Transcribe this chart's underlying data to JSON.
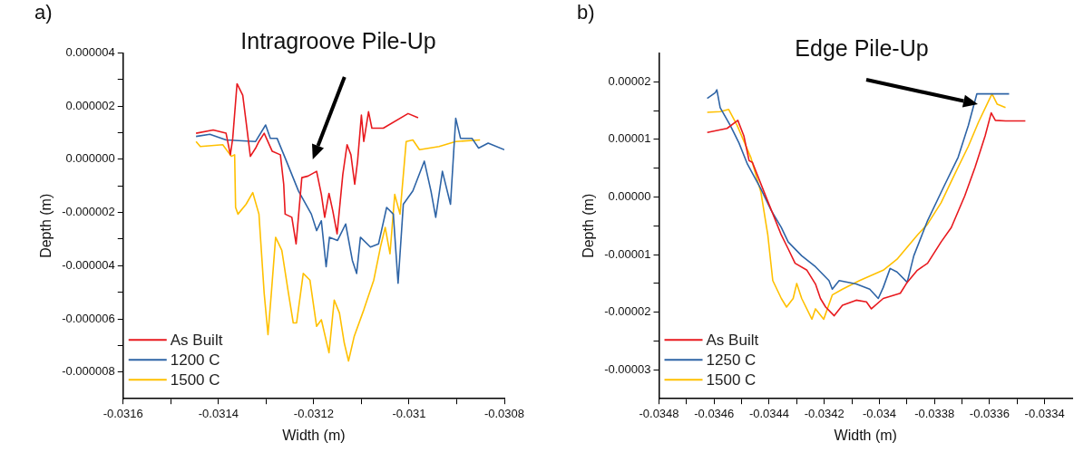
{
  "chart_data": [
    {
      "type": "line",
      "title": "a)",
      "xlabel": "Width (m)",
      "ylabel": "Depth (m)",
      "xlim": [
        -0.0316,
        -0.0308
      ],
      "ylim": [
        -9e-06,
        4e-06
      ],
      "xticks": [
        -0.0316,
        {
          "value": -0.0315,
          "label": null
        },
        -0.0314,
        {
          "value": -0.0313,
          "label": null
        },
        -0.0312,
        {
          "value": -0.0311,
          "label": null
        },
        -0.031,
        {
          "value": -0.0309,
          "label": null
        },
        -0.0308
      ],
      "yticks": [
        {
          "value": -8e-06,
          "label": "-0.000008"
        },
        {
          "value": -7e-06,
          "label": null
        },
        {
          "value": -6e-06,
          "label": "-0.000006"
        },
        {
          "value": -5e-06,
          "label": null
        },
        {
          "value": -4e-06,
          "label": "-0.000004"
        },
        {
          "value": -3e-06,
          "label": null
        },
        {
          "value": -2e-06,
          "label": "-0.000002"
        },
        {
          "value": -1e-06,
          "label": null
        },
        {
          "value": 0,
          "label": "0.000000"
        },
        {
          "value": 1e-06,
          "label": null
        },
        {
          "value": 2e-06,
          "label": "0.000002"
        },
        {
          "value": 3e-06,
          "label": null
        },
        {
          "value": 4e-06,
          "label": "0.000004"
        }
      ],
      "grid": false,
      "legend": "bottom left",
      "line_style": "solid",
      "marker": "none",
      "annotations": [
        "Intragroove Pile-Up"
      ],
      "series": [
        {
          "name": "As Built",
          "color": "#e8191e",
          "x": [
            -0.031447,
            -0.031411,
            -0.031384,
            -0.031375,
            -0.03137,
            -0.031361,
            -0.031349,
            -0.031342,
            -0.031333,
            -0.031322,
            -0.031315,
            -0.031304,
            -0.031287,
            -0.03127,
            -0.031263,
            -0.03126,
            -0.031246,
            -0.031237,
            -0.031225,
            -0.031212,
            -0.031194,
            -0.031184,
            -0.031177,
            -0.031168,
            -0.03116,
            -0.031151,
            -0.031139,
            -0.03113,
            -0.031122,
            -0.031114,
            -0.031108,
            -0.0311,
            -0.031095,
            -0.031085,
            -0.031078,
            -0.031054,
            -0.031002,
            -0.030981
          ],
          "values": [
            9.8e-07,
            1.1e-06,
            9.8e-07,
            1.7e-07,
            7.9e-07,
            2.84e-06,
            2.41e-06,
            1.41e-06,
            1.1e-07,
            4.2e-07,
            6.7e-07,
            9.8e-07,
            3e-07,
            1.7e-07,
            -9.4e-07,
            -2.06e-06,
            -2.18e-06,
            -3.18e-06,
            -6.9e-07,
            -6.3e-07,
            -4.5e-07,
            -1.32e-06,
            -2.18e-06,
            -1.28e-06,
            -1.94e-06,
            -2.8e-06,
            -5.7e-07,
            5.5e-07,
            1.7e-07,
            -9.4e-07,
            -7e-08,
            1.66e-06,
            6.7e-07,
            1.79e-06,
            1.17e-06,
            1.17e-06,
            1.72e-06,
            1.56e-06
          ]
        },
        {
          "name": "1200 C",
          "color": "#2e64a6",
          "x": [
            -0.031447,
            -0.031418,
            -0.031384,
            -0.031322,
            -0.031301,
            -0.031291,
            -0.031277,
            -0.03126,
            -0.031232,
            -0.031205,
            -0.031194,
            -0.031184,
            -0.031174,
            -0.031167,
            -0.03115,
            -0.031133,
            -0.031119,
            -0.03111,
            -0.031102,
            -0.031081,
            -0.031064,
            -0.031047,
            -0.031033,
            -0.031023,
            -0.031012,
            -0.030992,
            -0.030968,
            -0.030954,
            -0.030944,
            -0.03093,
            -0.030913,
            -0.030902,
            -0.030892,
            -0.030868,
            -0.030854,
            -0.030834,
            -0.0308
          ],
          "values": [
            8.6e-07,
            9.4e-07,
            7.3e-07,
            6.7e-07,
            1.29e-06,
            7.9e-07,
            7.9e-07,
            5e-08,
            -1.19e-06,
            -2.06e-06,
            -2.68e-06,
            -2.31e-06,
            -4.04e-06,
            -2.93e-06,
            -3.05e-06,
            -2.43e-06,
            -3.8e-06,
            -4.29e-06,
            -2.93e-06,
            -3.3e-06,
            -3.18e-06,
            -1.81e-06,
            -2.06e-06,
            -4.66e-06,
            -1.69e-06,
            -1.19e-06,
            -7e-08,
            -1.19e-06,
            -2.18e-06,
            -4.5e-07,
            -1.69e-06,
            1.54e-06,
            7.9e-07,
            7.9e-07,
            4.2e-07,
            6.1e-07,
            3.6e-07
          ]
        },
        {
          "name": "1500 C",
          "color": "#ffc000",
          "x": [
            -0.031447,
            -0.031438,
            -0.031391,
            -0.031373,
            -0.031366,
            -0.031364,
            -0.031359,
            -0.031342,
            -0.031328,
            -0.031315,
            -0.031304,
            -0.031296,
            -0.031289,
            -0.03128,
            -0.031267,
            -0.031253,
            -0.031243,
            -0.031236,
            -0.031222,
            -0.031208,
            -0.031194,
            -0.031184,
            -0.031168,
            -0.031157,
            -0.031146,
            -0.031136,
            -0.031127,
            -0.031115,
            -0.031095,
            -0.031074,
            -0.03106,
            -0.03105,
            -0.03104,
            -0.03103,
            -0.031019,
            -0.031006,
            -0.030992,
            -0.030978,
            -0.030937,
            -0.030902,
            -0.030851
          ],
          "values": [
            6.7e-07,
            4.8e-07,
            5.5e-07,
            1.1e-07,
            1.7e-07,
            -1.81e-06,
            -2.06e-06,
            -1.69e-06,
            -1.25e-06,
            -2.06e-06,
            -5.04e-06,
            -6.59e-06,
            -5.04e-06,
            -2.93e-06,
            -3.42e-06,
            -5.04e-06,
            -6.15e-06,
            -6.15e-06,
            -4.29e-06,
            -4.54e-06,
            -6.28e-06,
            -6.03e-06,
            -7.27e-06,
            -5.29e-06,
            -5.78e-06,
            -6.9e-06,
            -7.58e-06,
            -6.65e-06,
            -5.66e-06,
            -4.54e-06,
            -3.3e-06,
            -2.56e-06,
            -3.55e-06,
            -1.32e-06,
            -2.06e-06,
            6.7e-07,
            7.3e-07,
            3.6e-07,
            4.8e-07,
            6.7e-07,
            7.3e-07
          ]
        }
      ]
    },
    {
      "type": "line",
      "title": "b)",
      "xlabel": "Width (m)",
      "ylabel": "Depth (m)",
      "xlim": [
        -0.0348,
        -0.0333
      ],
      "ylim": [
        -3.5e-05,
        2.5e-05
      ],
      "xticks": [
        -0.0348,
        {
          "value": -0.0347,
          "label": null
        },
        -0.0346,
        {
          "value": -0.0345,
          "label": null
        },
        -0.0344,
        {
          "value": -0.0343,
          "label": null
        },
        -0.0342,
        {
          "value": -0.0341,
          "label": null
        },
        -0.034,
        {
          "value": -0.0339,
          "label": null
        },
        -0.0338,
        {
          "value": -0.0337,
          "label": null
        },
        -0.0336,
        {
          "value": -0.0335,
          "label": null
        },
        -0.0334
      ],
      "yticks": [
        {
          "value": -3e-05,
          "label": "-0.00003"
        },
        {
          "value": -2.5e-05,
          "label": null
        },
        {
          "value": -2e-05,
          "label": "-0.00002"
        },
        {
          "value": -1.5e-05,
          "label": null
        },
        {
          "value": -1e-05,
          "label": "-0.00001"
        },
        {
          "value": -5e-06,
          "label": null
        },
        {
          "value": 0,
          "label": "0.00000"
        },
        {
          "value": 5e-06,
          "label": null
        },
        {
          "value": 1e-05,
          "label": "0.00001"
        },
        {
          "value": 1.5e-05,
          "label": null
        },
        {
          "value": 2e-05,
          "label": "0.00002"
        }
      ],
      "grid": false,
      "legend": "bottom left",
      "line_style": "solid",
      "marker": "none",
      "annotations": [
        "Edge Pile-Up"
      ],
      "series": [
        {
          "name": "As Built",
          "color": "#e8191e",
          "x": [
            -0.034625,
            -0.034553,
            -0.034514,
            -0.034492,
            -0.034473,
            -0.034461,
            -0.034418,
            -0.034356,
            -0.034331,
            -0.034306,
            -0.034263,
            -0.034232,
            -0.034214,
            -0.034195,
            -0.034164,
            -0.034134,
            -0.034084,
            -0.034047,
            -0.034029,
            -0.033986,
            -0.033924,
            -0.033899,
            -0.033862,
            -0.033825,
            -0.033776,
            -0.033739,
            -0.03369,
            -0.033653,
            -0.033616,
            -0.033594,
            -0.033579,
            -0.033542,
            -0.03347
          ],
          "values": [
            1.12e-05,
            1.19e-05,
            1.33e-05,
            1.06e-05,
            6.3e-06,
            6e-06,
            8e-07,
            -6.6e-06,
            -9e-06,
            -1.15e-05,
            -1.27e-05,
            -1.51e-05,
            -1.76e-05,
            -1.91e-05,
            -2.06e-05,
            -1.88e-05,
            -1.79e-05,
            -1.82e-05,
            -1.94e-05,
            -1.76e-05,
            -1.67e-05,
            -1.48e-05,
            -1.27e-05,
            -1.15e-05,
            -7.8e-06,
            -5.3e-06,
            2e-07,
            5.1e-06,
            1.06e-05,
            1.46e-05,
            1.33e-05,
            1.32e-05,
            1.32e-05
          ]
        },
        {
          "name": "1250 C",
          "color": "#2e64a6",
          "x": [
            -0.034625,
            -0.034596,
            -0.03459,
            -0.034578,
            -0.034541,
            -0.03451,
            -0.034479,
            -0.03443,
            -0.034393,
            -0.034356,
            -0.034331,
            -0.034282,
            -0.034232,
            -0.034183,
            -0.034171,
            -0.034146,
            -0.034084,
            -0.034035,
            -0.034004,
            -0.033986,
            -0.033961,
            -0.033936,
            -0.033899,
            -0.033875,
            -0.033825,
            -0.033764,
            -0.033714,
            -0.033677,
            -0.033646,
            -0.033628,
            -0.033579,
            -0.033529
          ],
          "values": [
            1.71e-05,
            1.81e-05,
            1.86e-05,
            1.55e-05,
            1.24e-05,
            9.4e-06,
            5.7e-06,
            1.4e-06,
            -2.3e-06,
            -5.3e-06,
            -7.8e-06,
            -1.02e-05,
            -1.21e-05,
            -1.45e-05,
            -1.6e-05,
            -1.45e-05,
            -1.51e-05,
            -1.6e-05,
            -1.76e-05,
            -1.57e-05,
            -1.24e-05,
            -1.3e-05,
            -1.48e-05,
            -1.02e-05,
            -4.1e-06,
            2e-06,
            6.9e-06,
            1.24e-05,
            1.79e-05,
            1.79e-05,
            1.79e-05,
            1.79e-05
          ]
        },
        {
          "name": "1500 C",
          "color": "#ffc000",
          "x": [
            -0.034625,
            -0.034578,
            -0.034547,
            -0.034516,
            -0.034467,
            -0.03443,
            -0.034405,
            -0.034387,
            -0.034356,
            -0.034337,
            -0.034313,
            -0.0343,
            -0.034282,
            -0.034245,
            -0.034232,
            -0.034202,
            -0.034171,
            -0.034134,
            -0.034072,
            -0.033986,
            -0.033936,
            -0.033862,
            -0.033825,
            -0.033776,
            -0.033727,
            -0.033677,
            -0.03364,
            -0.033603,
            -0.033591,
            -0.033572,
            -0.033542
          ],
          "values": [
            1.47e-05,
            1.48e-05,
            1.52e-05,
            1.24e-05,
            6.9e-06,
            8e-07,
            -6.6e-06,
            -1.45e-05,
            -1.76e-05,
            -1.91e-05,
            -1.76e-05,
            -1.5e-05,
            -1.76e-05,
            -2.12e-05,
            -1.94e-05,
            -2.12e-05,
            -1.7e-05,
            -1.6e-05,
            -1.45e-05,
            -1.27e-05,
            -1.08e-05,
            -6.6e-06,
            -4.7e-06,
            -1e-06,
            3.9e-06,
            8.8e-06,
            1.3e-05,
            1.67e-05,
            1.79e-05,
            1.61e-05,
            1.55e-05
          ]
        }
      ]
    }
  ]
}
